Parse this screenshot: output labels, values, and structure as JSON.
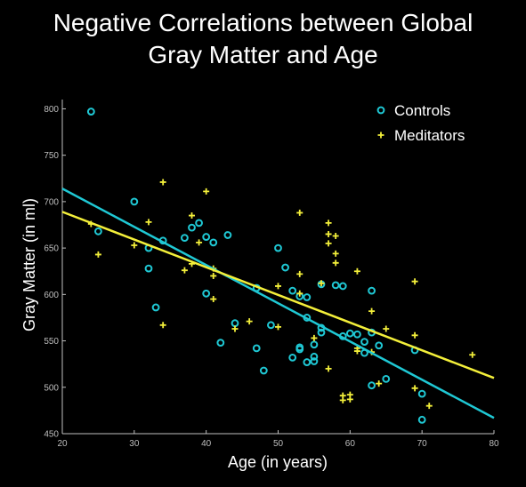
{
  "chart_data": {
    "type": "scatter",
    "title": [
      "Negative Correlations between Global",
      "Gray Matter and Age"
    ],
    "xlabel": "Age (in years)",
    "ylabel": "Gray Matter (in ml)",
    "xlim": [
      20,
      80
    ],
    "ylim": [
      450,
      810
    ],
    "xticks": [
      20,
      30,
      40,
      50,
      60,
      70,
      80
    ],
    "yticks": [
      450,
      500,
      550,
      600,
      650,
      700,
      750,
      800
    ],
    "grid": false,
    "legend_position": "top-right",
    "series": [
      {
        "name": "Controls",
        "marker": "circle",
        "color": "#1fc8d4",
        "points": [
          [
            24,
            797
          ],
          [
            25,
            668
          ],
          [
            30,
            700
          ],
          [
            32,
            650
          ],
          [
            32,
            628
          ],
          [
            33,
            586
          ],
          [
            34,
            658
          ],
          [
            37,
            661
          ],
          [
            38,
            672
          ],
          [
            39,
            677
          ],
          [
            40,
            662
          ],
          [
            40,
            601
          ],
          [
            41,
            656
          ],
          [
            42,
            548
          ],
          [
            43,
            664
          ],
          [
            44,
            569
          ],
          [
            47,
            542
          ],
          [
            47,
            607
          ],
          [
            48,
            518
          ],
          [
            49,
            567
          ],
          [
            50,
            650
          ],
          [
            51,
            629
          ],
          [
            52,
            604
          ],
          [
            52,
            532
          ],
          [
            53,
            598
          ],
          [
            53,
            543
          ],
          [
            53,
            541
          ],
          [
            54,
            597
          ],
          [
            54,
            575
          ],
          [
            54,
            527
          ],
          [
            55,
            546
          ],
          [
            55,
            533
          ],
          [
            55,
            528
          ],
          [
            56,
            564
          ],
          [
            56,
            559
          ],
          [
            56,
            611
          ],
          [
            58,
            610
          ],
          [
            59,
            609
          ],
          [
            59,
            555
          ],
          [
            60,
            558
          ],
          [
            61,
            557
          ],
          [
            62,
            549
          ],
          [
            62,
            537
          ],
          [
            63,
            604
          ],
          [
            63,
            559
          ],
          [
            63,
            502
          ],
          [
            64,
            545
          ],
          [
            65,
            509
          ],
          [
            69,
            540
          ],
          [
            70,
            493
          ],
          [
            70,
            465
          ]
        ]
      },
      {
        "name": "Meditators",
        "marker": "plus",
        "color": "#f3ef3a",
        "points": [
          [
            24,
            676
          ],
          [
            25,
            643
          ],
          [
            30,
            653
          ],
          [
            32,
            678
          ],
          [
            34,
            721
          ],
          [
            34,
            567
          ],
          [
            37,
            626
          ],
          [
            38,
            685
          ],
          [
            38,
            633
          ],
          [
            39,
            656
          ],
          [
            40,
            711
          ],
          [
            41,
            628
          ],
          [
            41,
            620
          ],
          [
            41,
            595
          ],
          [
            44,
            563
          ],
          [
            46,
            571
          ],
          [
            50,
            609
          ],
          [
            50,
            565
          ],
          [
            53,
            688
          ],
          [
            53,
            622
          ],
          [
            53,
            601
          ],
          [
            55,
            553
          ],
          [
            56,
            612
          ],
          [
            57,
            677
          ],
          [
            57,
            665
          ],
          [
            57,
            655
          ],
          [
            57,
            520
          ],
          [
            58,
            663
          ],
          [
            58,
            644
          ],
          [
            58,
            634
          ],
          [
            59,
            491
          ],
          [
            59,
            486
          ],
          [
            60,
            492
          ],
          [
            60,
            487
          ],
          [
            61,
            625
          ],
          [
            61,
            542
          ],
          [
            61,
            539
          ],
          [
            63,
            582
          ],
          [
            63,
            538
          ],
          [
            64,
            504
          ],
          [
            65,
            563
          ],
          [
            69,
            614
          ],
          [
            69,
            556
          ],
          [
            69,
            499
          ],
          [
            71,
            480
          ],
          [
            77,
            535
          ]
        ]
      }
    ],
    "regression_lines": [
      {
        "series": "Controls",
        "color": "#1fc8d4",
        "x": [
          20,
          80
        ],
        "y": [
          714,
          467
        ]
      },
      {
        "series": "Meditators",
        "color": "#f3ef3a",
        "x": [
          20,
          80
        ],
        "y": [
          689,
          510
        ]
      }
    ]
  }
}
